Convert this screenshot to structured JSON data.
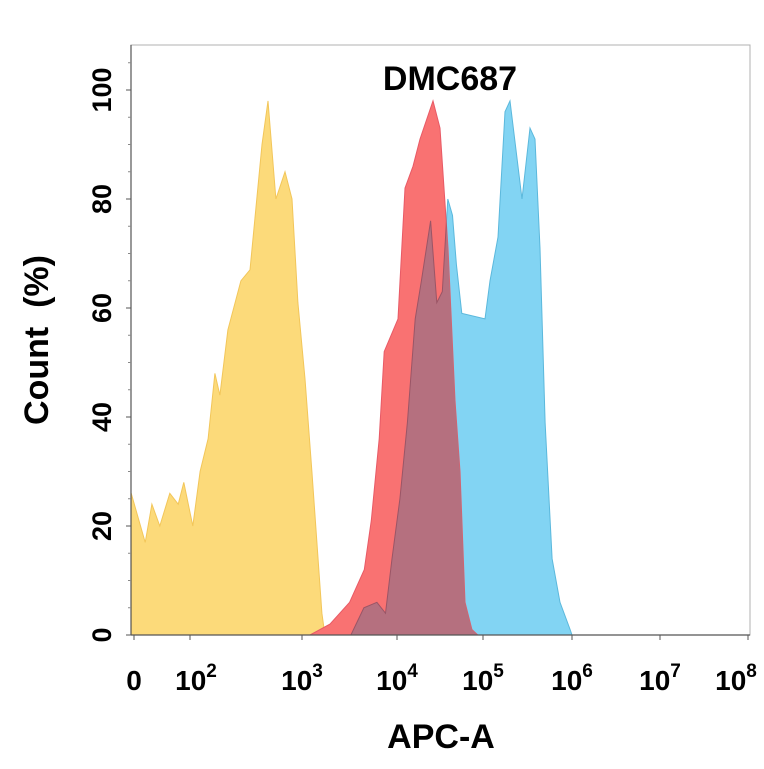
{
  "chart_data": {
    "type": "area",
    "title": "DMC687",
    "xlabel": "APC-A",
    "ylabel": "Count  (%)",
    "x_scale": "biexponential",
    "xlim": [
      0,
      100000000
    ],
    "ylim": [
      0,
      108
    ],
    "x_ticks": [
      {
        "base": "0",
        "exp": ""
      },
      {
        "base": "10",
        "exp": "2"
      },
      {
        "base": "10",
        "exp": "3"
      },
      {
        "base": "10",
        "exp": "4"
      },
      {
        "base": "10",
        "exp": "5"
      },
      {
        "base": "10",
        "exp": "6"
      },
      {
        "base": "10",
        "exp": "7"
      },
      {
        "base": "10",
        "exp": "8"
      }
    ],
    "x_tick_values": [
      0,
      100,
      1000,
      10000,
      100000,
      1000000,
      10000000,
      100000000
    ],
    "y_ticks": [
      "0",
      "20",
      "40",
      "60",
      "80",
      "100"
    ],
    "y_tick_values": [
      0,
      20,
      40,
      60,
      80,
      100
    ],
    "grid": false,
    "legend": "none",
    "colors": {
      "yellow": "#FCDA7A",
      "red": "#F97272",
      "blue": "#82D4F3",
      "overlap": "#B5707F"
    },
    "series": [
      {
        "color": "yellow",
        "points": [
          [
            -5,
            26
          ],
          [
            20,
            17
          ],
          [
            32,
            24
          ],
          [
            46,
            20
          ],
          [
            64,
            26
          ],
          [
            79,
            24
          ],
          [
            89,
            28
          ],
          [
            106,
            20
          ],
          [
            123,
            30
          ],
          [
            145,
            36
          ],
          [
            167,
            48
          ],
          [
            185,
            44
          ],
          [
            218,
            56
          ],
          [
            285,
            65
          ],
          [
            343,
            67
          ],
          [
            439,
            90
          ],
          [
            497,
            98
          ],
          [
            585,
            80
          ],
          [
            705,
            85
          ],
          [
            814,
            80
          ],
          [
            920,
            61
          ],
          [
            1075,
            47
          ],
          [
            1270,
            30
          ],
          [
            1620,
            4
          ],
          [
            1740,
            0
          ]
        ]
      },
      {
        "color": "blue",
        "points": [
          [
            3270,
            0
          ],
          [
            4480,
            5
          ],
          [
            6140,
            6
          ],
          [
            7560,
            4
          ],
          [
            8860,
            14
          ],
          [
            10800,
            25
          ],
          [
            13200,
            39
          ],
          [
            16300,
            58
          ],
          [
            19200,
            65
          ],
          [
            24600,
            76
          ],
          [
            29000,
            61
          ],
          [
            33600,
            63
          ],
          [
            39000,
            80
          ],
          [
            44200,
            77
          ],
          [
            49000,
            68
          ],
          [
            56700,
            59
          ],
          [
            105300,
            58
          ],
          [
            119800,
            65
          ],
          [
            147400,
            73
          ],
          [
            176700,
            96
          ],
          [
            201000,
            98
          ],
          [
            234700,
            89
          ],
          [
            274000,
            80
          ],
          [
            337000,
            93
          ],
          [
            384000,
            91
          ],
          [
            437000,
            71
          ],
          [
            498000,
            39
          ],
          [
            597000,
            14
          ],
          [
            734000,
            6
          ],
          [
            951000,
            1
          ],
          [
            1000000,
            0
          ]
        ]
      },
      {
        "color": "red",
        "points": [
          [
            1214,
            0
          ],
          [
            1970,
            2
          ],
          [
            3170,
            6
          ],
          [
            4530,
            12
          ],
          [
            5360,
            21
          ],
          [
            6500,
            36
          ],
          [
            7340,
            52
          ],
          [
            10270,
            58
          ],
          [
            12390,
            82
          ],
          [
            15330,
            86
          ],
          [
            18500,
            91
          ],
          [
            26200,
            98
          ],
          [
            31600,
            93
          ],
          [
            39200,
            71
          ],
          [
            47200,
            43
          ],
          [
            54000,
            30
          ],
          [
            61700,
            6
          ],
          [
            74300,
            1
          ],
          [
            87000,
            0
          ]
        ]
      }
    ]
  }
}
